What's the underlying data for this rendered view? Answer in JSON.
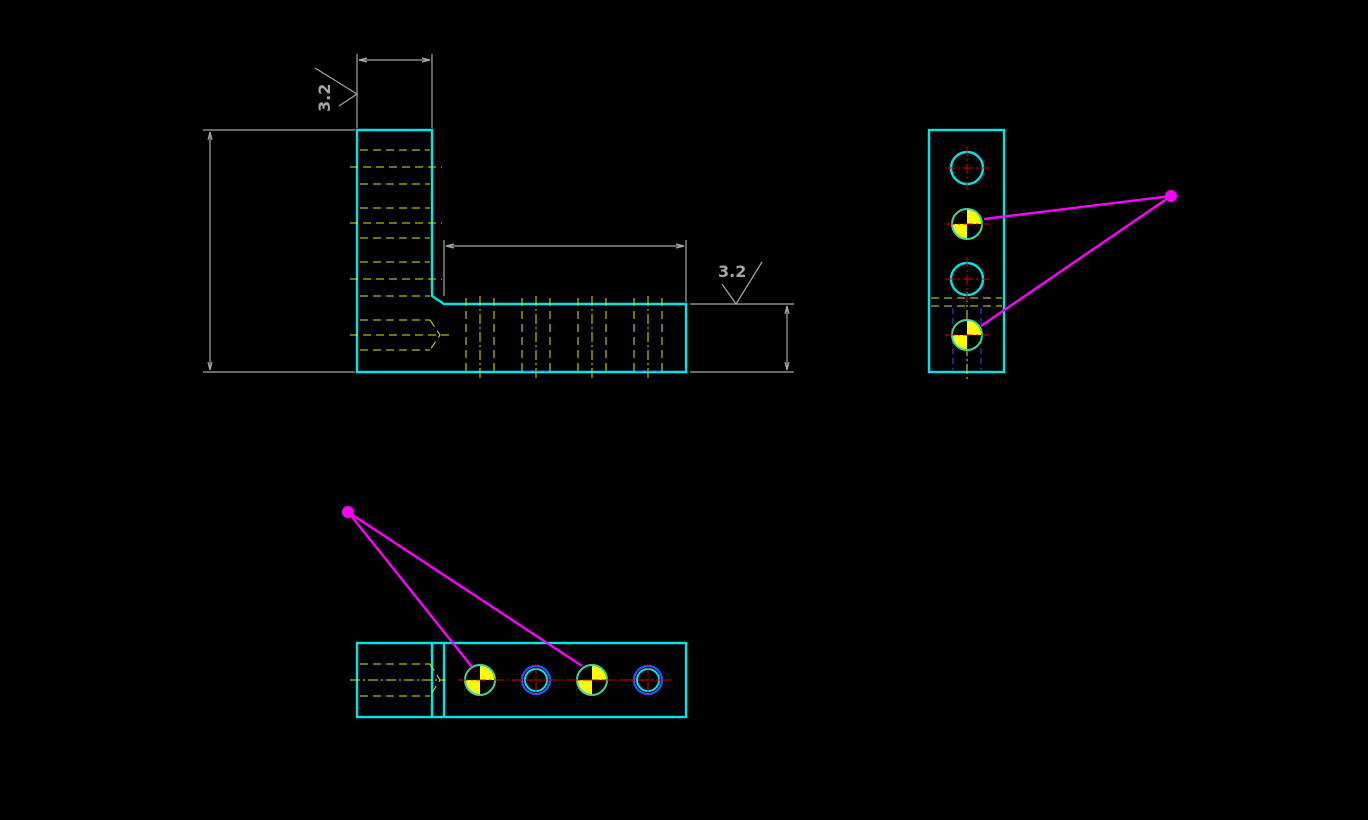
{
  "drawing": {
    "surface_finish_front": "3.2",
    "surface_finish_step": "3.2"
  },
  "colors": {
    "background": "#000000",
    "outline": "#00e5e5",
    "dimension": "#a6a6a6",
    "hidden_line": "#e6e600",
    "center_line": "#e00000",
    "leader": "#ff00ff",
    "datum_fill": "#ffff00",
    "blue_hole": "#2f52ff"
  }
}
